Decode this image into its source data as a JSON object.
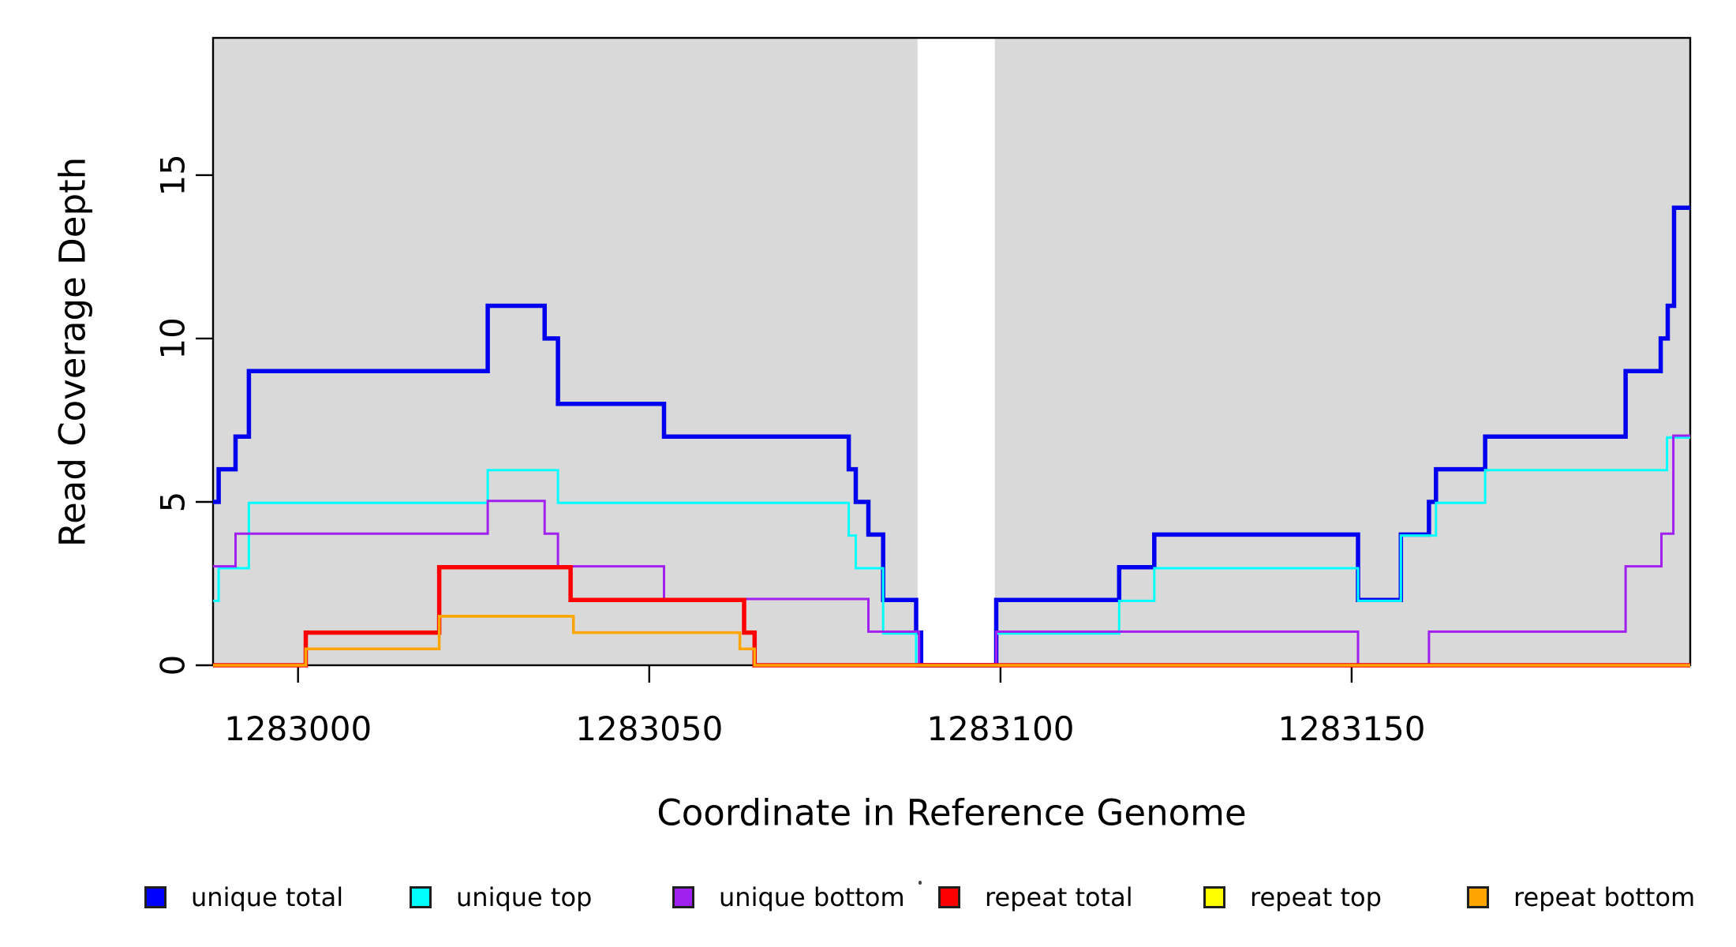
{
  "axis_titles": {
    "y": "Read Coverage Depth",
    "x": "Coordinate in Reference Genome"
  },
  "chart_data": {
    "type": "line",
    "subtype": "step",
    "title": "",
    "xlabel": "Coordinate in Reference Genome",
    "ylabel": "Read Coverage Depth",
    "xlim": [
      1282987.9,
      1283198.2
    ],
    "ylim": [
      0,
      19.2
    ],
    "grid": false,
    "legend_position": "bottom",
    "x_ticks": [
      {
        "value": 1283000,
        "label": "1283000"
      },
      {
        "value": 1283050,
        "label": "1283050"
      },
      {
        "value": 1283100,
        "label": "1283100"
      },
      {
        "value": 1283150,
        "label": "1283150"
      }
    ],
    "y_ticks": [
      {
        "value": 0,
        "label": "0"
      },
      {
        "value": 5,
        "label": "5"
      },
      {
        "value": 10,
        "label": "10"
      },
      {
        "value": 15,
        "label": "15"
      }
    ],
    "plot_background": {
      "color": "#d9d9d9",
      "shaded_x_regions": [
        [
          1282987.9,
          1283088.2
        ],
        [
          1283099.2,
          1283198.2
        ]
      ],
      "white_gap_region": [
        1283088.2,
        1283099.2
      ]
    },
    "series": [
      {
        "name": "unique total",
        "color": "#0000ee",
        "width": 5.5,
        "dy": 0,
        "steps": [
          [
            1282987.9,
            5
          ],
          [
            1282988.7,
            6
          ],
          [
            1282991.1,
            7
          ],
          [
            1282993.0,
            9
          ],
          [
            1283027.0,
            11
          ],
          [
            1283035.1,
            10
          ],
          [
            1283037.0,
            8
          ],
          [
            1283052.1,
            7
          ],
          [
            1283078.4,
            6
          ],
          [
            1283079.4,
            5
          ],
          [
            1283081.2,
            4
          ],
          [
            1283083.3,
            2
          ],
          [
            1283088.0,
            1
          ],
          [
            1283088.7,
            0
          ],
          [
            1283099.4,
            2
          ],
          [
            1283116.9,
            3
          ],
          [
            1283121.9,
            4
          ],
          [
            1283150.9,
            2
          ],
          [
            1283157.0,
            4
          ],
          [
            1283161.0,
            5
          ],
          [
            1283162.0,
            6
          ],
          [
            1283169.0,
            7
          ],
          [
            1283189.0,
            9
          ],
          [
            1283194.0,
            10
          ],
          [
            1283195.0,
            11
          ],
          [
            1283195.9,
            14
          ]
        ]
      },
      {
        "name": "unique top",
        "color": "#00ffff",
        "width": 3,
        "dy": 1.2,
        "steps": [
          [
            1282987.9,
            2
          ],
          [
            1282988.7,
            3
          ],
          [
            1282993.0,
            5
          ],
          [
            1283027.0,
            6
          ],
          [
            1283037.0,
            5
          ],
          [
            1283078.4,
            4
          ],
          [
            1283079.4,
            3
          ],
          [
            1283083.3,
            1
          ],
          [
            1283088.0,
            0
          ],
          [
            1283099.4,
            1
          ],
          [
            1283116.9,
            2
          ],
          [
            1283121.9,
            3
          ],
          [
            1283150.9,
            2
          ],
          [
            1283157.0,
            4
          ],
          [
            1283162.0,
            5
          ],
          [
            1283169.0,
            6
          ],
          [
            1283194.9,
            7
          ]
        ]
      },
      {
        "name": "unique bottom",
        "color": "#a020f0",
        "width": 3,
        "dy": -1.2,
        "steps": [
          [
            1282987.9,
            3
          ],
          [
            1282991.1,
            4
          ],
          [
            1283027.0,
            5
          ],
          [
            1283035.1,
            4
          ],
          [
            1283037.0,
            3
          ],
          [
            1283052.1,
            2
          ],
          [
            1283081.2,
            1
          ],
          [
            1283088.4,
            0
          ],
          [
            1283099.4,
            1
          ],
          [
            1283150.9,
            0
          ],
          [
            1283161.0,
            1
          ],
          [
            1283189.0,
            3
          ],
          [
            1283194.1,
            4
          ],
          [
            1283195.8,
            7
          ]
        ]
      },
      {
        "name": "repeat total",
        "color": "#ff0000",
        "width": 5.5,
        "dy": 0,
        "steps": [
          [
            1282987.9,
            0
          ],
          [
            1283001.1,
            1
          ],
          [
            1283020.1,
            3
          ],
          [
            1283038.8,
            2
          ],
          [
            1283063.5,
            1
          ],
          [
            1283065.0,
            0
          ]
        ]
      },
      {
        "name": "repeat top",
        "color": "#ffff00",
        "width": 3,
        "dy": 0,
        "steps": [
          [
            1282987.9,
            0
          ],
          [
            1283001.1,
            0.5
          ],
          [
            1283020.1,
            1.5
          ],
          [
            1283039.2,
            1
          ],
          [
            1283062.9,
            0.5
          ],
          [
            1283065.0,
            0
          ]
        ]
      },
      {
        "name": "repeat bottom",
        "color": "#ffa500",
        "width": 3.5,
        "dy": 0,
        "steps": [
          [
            1282987.9,
            0
          ],
          [
            1283001.1,
            0.5
          ],
          [
            1283020.1,
            1.5
          ],
          [
            1283039.2,
            1
          ],
          [
            1283062.9,
            0.5
          ],
          [
            1283065.0,
            0
          ]
        ]
      }
    ]
  },
  "legend": {
    "items": [
      {
        "label": "unique total",
        "color": "#0000ff"
      },
      {
        "label": "unique top",
        "color": "#00ffff"
      },
      {
        "label": "unique bottom",
        "color": "#a020f0"
      },
      {
        "label": "repeat total",
        "color": "#ff0000"
      },
      {
        "label": "repeat top",
        "color": "#ffff00"
      },
      {
        "label": "repeat bottom",
        "color": "#ffa500"
      }
    ]
  }
}
